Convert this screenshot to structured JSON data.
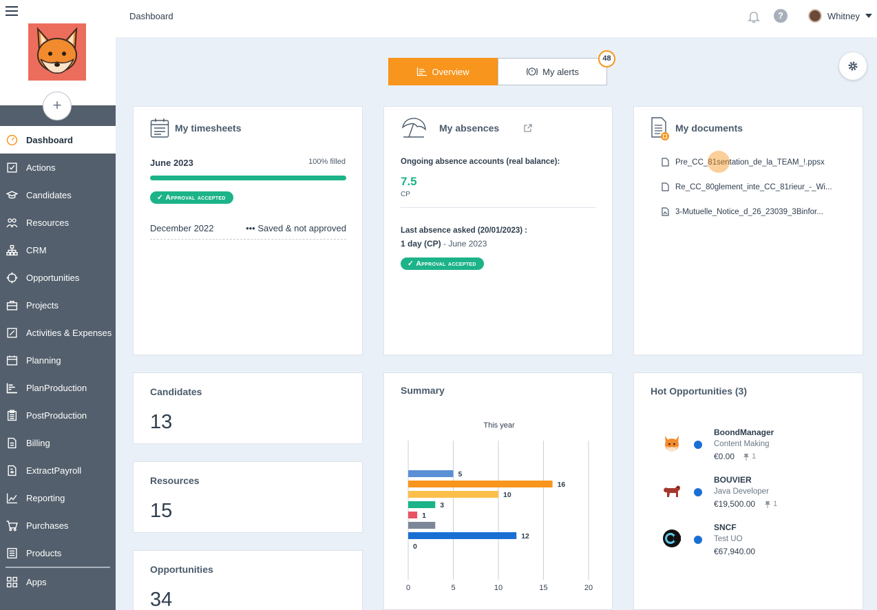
{
  "sidebar": {
    "items": [
      {
        "label": "Dashboard",
        "icon": "dashboard-gauge-icon",
        "active": true
      },
      {
        "label": "Actions",
        "icon": "checklist-icon"
      },
      {
        "label": "Candidates",
        "icon": "graduation-cap-icon"
      },
      {
        "label": "Resources",
        "icon": "people-icon"
      },
      {
        "label": "CRM",
        "icon": "org-chart-icon"
      },
      {
        "label": "Opportunities",
        "icon": "crosshair-icon"
      },
      {
        "label": "Projects",
        "icon": "briefcase-icon"
      },
      {
        "label": "Activities & Expenses",
        "icon": "edit-document-icon"
      },
      {
        "label": "Planning",
        "icon": "calendar-icon"
      },
      {
        "label": "PlanProduction",
        "icon": "gantt-icon"
      },
      {
        "label": "PostProduction",
        "icon": "clipboard-icon"
      },
      {
        "label": "Billing",
        "icon": "invoice-icon"
      },
      {
        "label": "ExtractPayroll",
        "icon": "payroll-icon"
      },
      {
        "label": "Reporting",
        "icon": "line-chart-icon"
      },
      {
        "label": "Purchases",
        "icon": "cart-icon"
      },
      {
        "label": "Products",
        "icon": "list-document-icon"
      }
    ],
    "apps_label": "Apps",
    "add_label": "+"
  },
  "header": {
    "title": "Dashboard",
    "user_name": "Whitney",
    "help_label": "?"
  },
  "tabs": {
    "overview": "Overview",
    "alerts": "My alerts",
    "alerts_count": "48"
  },
  "timesheets": {
    "title": "My timesheets",
    "month": "June 2023",
    "fill_status": "100% filled",
    "fill_fraction": 1.0,
    "badge": "Approval accepted",
    "row2_month": "December 2022",
    "row2_status": "••• Saved & not approved"
  },
  "absences": {
    "title": "My absences",
    "label": "Ongoing absence accounts (real balance):",
    "value": "7.5",
    "unit": "CP",
    "last_label": "Last absence asked (20/01/2023) :",
    "last_days": "1 day (CP)",
    "last_month": " - June 2023",
    "badge": "Approval accepted"
  },
  "documents": {
    "title": "My documents",
    "files": [
      "Pre_CC_81sentation_de_la_TEAM_!.ppsx",
      "Re_CC_80glement_inte_CC_81rieur_-_Wi...",
      "3-Mutuelle_Notice_d_26_23039_3Binfor..."
    ]
  },
  "counts": {
    "candidates_title": "Candidates",
    "candidates_value": "13",
    "resources_title": "Resources",
    "resources_value": "15",
    "opportunities_title": "Opportunities",
    "opportunities_value": "34"
  },
  "summary": {
    "title": "Summary"
  },
  "chart_data": {
    "type": "bar",
    "orientation": "horizontal",
    "title": "This year",
    "values": [
      5,
      16,
      10,
      3,
      1,
      3,
      12,
      0
    ],
    "labels": [
      "5",
      "16",
      "10",
      "3",
      "1",
      "",
      "12",
      "0"
    ],
    "colors": [
      "#5b8fd6",
      "#f7951d",
      "#fcc04a",
      "#1cb388",
      "#e95465",
      "#7c8898",
      "#1a6fd4",
      "#7c8898"
    ],
    "xlim": [
      0,
      20
    ],
    "xticks": [
      0,
      5,
      10,
      15,
      20
    ],
    "grid": true
  },
  "hot_opportunities": {
    "title": "Hot Opportunities (3)",
    "items": [
      {
        "name": "BoondManager",
        "sub": "Content Making",
        "amount": "€0.00",
        "pins": "1",
        "icon": "fox-logo-icon"
      },
      {
        "name": "BOUVIER",
        "sub": "Java Developer",
        "amount": "€19,500.00",
        "pins": "1",
        "icon": "dog-logo-icon"
      },
      {
        "name": "SNCF",
        "sub": "Test UO",
        "amount": "€67,940.00",
        "pins": "",
        "icon": "sncf-logo-icon"
      }
    ]
  }
}
